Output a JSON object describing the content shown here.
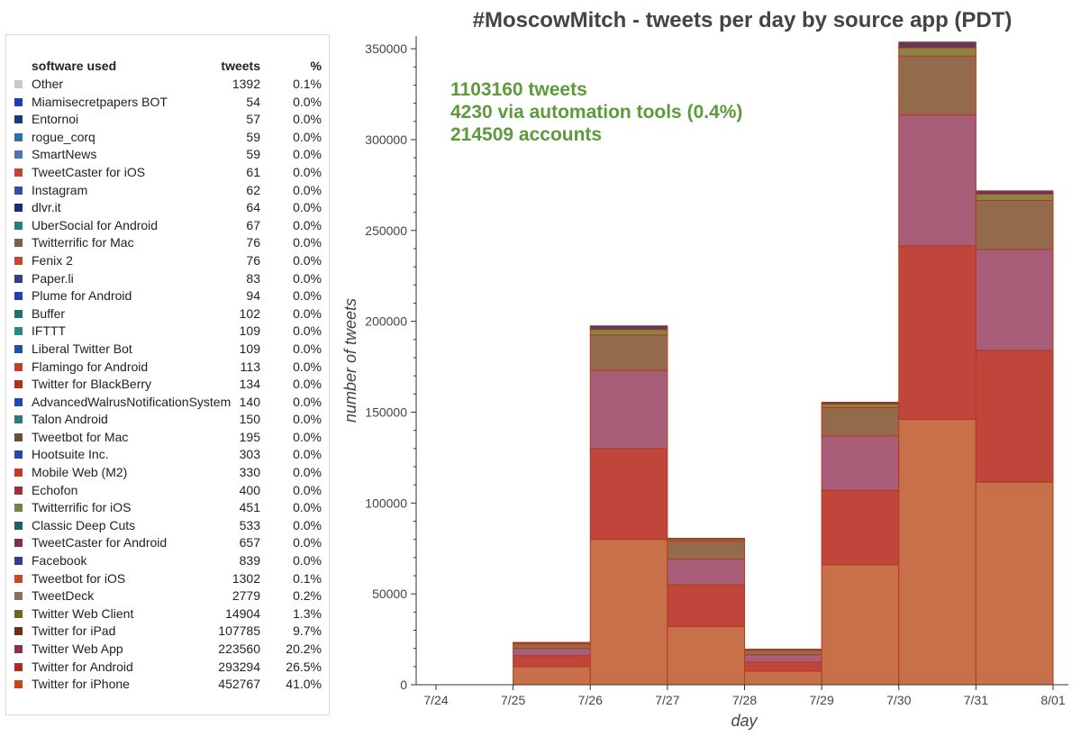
{
  "chart_data": {
    "type": "bar",
    "stacked": true,
    "title": "#MoscowMitch - tweets per day by source app (PDT)",
    "xlabel": "day",
    "ylabel": "number of tweets",
    "ylim": [
      0,
      357000
    ],
    "x_ticks": [
      "7/24",
      "7/25",
      "7/26",
      "7/27",
      "7/28",
      "7/29",
      "7/30",
      "7/31",
      "8/01"
    ],
    "y_ticks": [
      0,
      50000,
      100000,
      150000,
      200000,
      250000,
      300000,
      350000
    ],
    "grid": false,
    "categories": [
      "7/25",
      "7/26",
      "7/27",
      "7/28",
      "7/29",
      "7/30",
      "7/31"
    ],
    "series": [
      {
        "name": "Twitter for iPhone",
        "color": "#c8704a",
        "values": [
          10000,
          80000,
          32000,
          7500,
          66000,
          146000,
          111500
        ]
      },
      {
        "name": "Twitter for Android",
        "color": "#c0453a",
        "values": [
          6000,
          50000,
          23000,
          5000,
          41000,
          95500,
          72500
        ]
      },
      {
        "name": "Twitter Web App",
        "color": "#a85d78",
        "values": [
          4000,
          43000,
          14000,
          4000,
          30000,
          72000,
          55500
        ]
      },
      {
        "name": "Twitter for iPad",
        "color": "#946a4c",
        "values": [
          2500,
          19500,
          10000,
          2500,
          15500,
          32500,
          27000
        ]
      },
      {
        "name": "Twitter Web Client",
        "color": "#8a843e",
        "values": [
          300,
          3000,
          1000,
          300,
          2000,
          4500,
          3500
        ]
      },
      {
        "name": "Other",
        "color": "#5b3a5e",
        "values": [
          500,
          2000,
          600,
          300,
          1000,
          3200,
          1800
        ]
      }
    ],
    "annotations": [
      "1103160 tweets",
      "4230 via automation tools (0.4%)",
      "214509 accounts"
    ],
    "annotation_color": "#5c9a3c"
  },
  "legend": {
    "header": {
      "name": "software used",
      "tweets": "tweets",
      "pct": "%"
    },
    "rows": [
      {
        "name": "Other",
        "tweets": "1392",
        "pct": "0.1%",
        "color": "#c8c8c8"
      },
      {
        "name": "Miamisecretpapers BOT",
        "tweets": "54",
        "pct": "0.0%",
        "color": "#1f3fae"
      },
      {
        "name": "Entornoi",
        "tweets": "57",
        "pct": "0.0%",
        "color": "#1c3a78"
      },
      {
        "name": "rogue_corq",
        "tweets": "59",
        "pct": "0.0%",
        "color": "#2b73a6"
      },
      {
        "name": "SmartNews",
        "tweets": "59",
        "pct": "0.0%",
        "color": "#4a78b0"
      },
      {
        "name": "TweetCaster for iOS",
        "tweets": "61",
        "pct": "0.0%",
        "color": "#c0452c"
      },
      {
        "name": "Instagram",
        "tweets": "62",
        "pct": "0.0%",
        "color": "#3a4aa8"
      },
      {
        "name": "dlvr.it",
        "tweets": "64",
        "pct": "0.0%",
        "color": "#1a2a80"
      },
      {
        "name": "UberSocial for Android",
        "tweets": "67",
        "pct": "0.0%",
        "color": "#2a8080"
      },
      {
        "name": "Twitterrific for Mac",
        "tweets": "76",
        "pct": "0.0%",
        "color": "#7a6048"
      },
      {
        "name": "Fenix 2",
        "tweets": "76",
        "pct": "0.0%",
        "color": "#c04a30"
      },
      {
        "name": "Paper.li",
        "tweets": "83",
        "pct": "0.0%",
        "color": "#3a3a80"
      },
      {
        "name": "Plume for Android",
        "tweets": "94",
        "pct": "0.0%",
        "color": "#2040b0"
      },
      {
        "name": "Buffer",
        "tweets": "102",
        "pct": "0.0%",
        "color": "#1f7070"
      },
      {
        "name": "IFTTT",
        "tweets": "109",
        "pct": "0.0%",
        "color": "#2a8a80"
      },
      {
        "name": "Liberal Twitter Bot",
        "tweets": "109",
        "pct": "0.0%",
        "color": "#2050a8"
      },
      {
        "name": "Flamingo for Android",
        "tweets": "113",
        "pct": "0.0%",
        "color": "#c04028"
      },
      {
        "name": "Twitter for BlackBerry",
        "tweets": "134",
        "pct": "0.0%",
        "color": "#b03020"
      },
      {
        "name": "AdvancedWalrusNotificationSystem",
        "tweets": "140",
        "pct": "0.0%",
        "color": "#1e4ab0"
      },
      {
        "name": "Talon Android",
        "tweets": "150",
        "pct": "0.0%",
        "color": "#2a7a80"
      },
      {
        "name": "Tweetbot for Mac",
        "tweets": "195",
        "pct": "0.0%",
        "color": "#6a5038"
      },
      {
        "name": "Hootsuite Inc.",
        "tweets": "303",
        "pct": "0.0%",
        "color": "#2848a8"
      },
      {
        "name": "Mobile Web (M2)",
        "tweets": "330",
        "pct": "0.0%",
        "color": "#c03a28"
      },
      {
        "name": "Echofon",
        "tweets": "400",
        "pct": "0.0%",
        "color": "#a03040"
      },
      {
        "name": "Twitterrific for iOS",
        "tweets": "451",
        "pct": "0.0%",
        "color": "#7a8048"
      },
      {
        "name": "Classic Deep Cuts",
        "tweets": "533",
        "pct": "0.0%",
        "color": "#1e5e68"
      },
      {
        "name": "TweetCaster for Android",
        "tweets": "657",
        "pct": "0.0%",
        "color": "#803048"
      },
      {
        "name": "Facebook",
        "tweets": "839",
        "pct": "0.0%",
        "color": "#3a3a88"
      },
      {
        "name": "Tweetbot for iOS",
        "tweets": "1302",
        "pct": "0.1%",
        "color": "#c04a2a"
      },
      {
        "name": "TweetDeck",
        "tweets": "2779",
        "pct": "0.2%",
        "color": "#8a7060"
      },
      {
        "name": "Twitter Web Client",
        "tweets": "14904",
        "pct": "1.3%",
        "color": "#6a6a20"
      },
      {
        "name": "Twitter for iPad",
        "tweets": "107785",
        "pct": "9.7%",
        "color": "#6a3010"
      },
      {
        "name": "Twitter Web App",
        "tweets": "223560",
        "pct": "20.2%",
        "color": "#8a3050"
      },
      {
        "name": "Twitter for Android",
        "tweets": "293294",
        "pct": "26.5%",
        "color": "#b02a1e"
      },
      {
        "name": "Twitter for iPhone",
        "tweets": "452767",
        "pct": "41.0%",
        "color": "#c04a18"
      }
    ]
  }
}
